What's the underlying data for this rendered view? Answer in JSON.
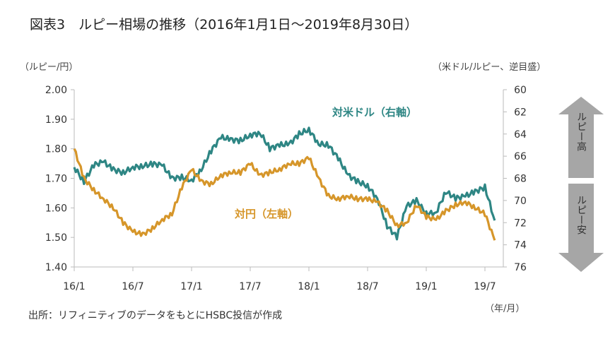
{
  "title": "図表3　ルピー相場の推移（2016年1月1日～2019年8月30日）",
  "left_unit": "（ルピー/円）",
  "right_unit": "（米ドル/ルピー、逆目盛）",
  "x_unit": "（年/月）",
  "source": "出所：リフィニティブのデータをもとにHSBC投信が作成",
  "arrow_up_label": "ルピー高",
  "arrow_down_label": "ルピー安",
  "colors": {
    "usd": "#2e8684",
    "jpy": "#d6962a",
    "axis": "#bbbbbb",
    "arrow": "#a6a6a6"
  },
  "chart_data": {
    "type": "line",
    "title": "ルピー相場の推移（2016年1月1日～2019年8月30日）",
    "x_ticks": [
      "16/1",
      "16/7",
      "17/1",
      "17/7",
      "18/1",
      "18/7",
      "19/1",
      "19/7"
    ],
    "y_left": {
      "label": "（ルピー/円）",
      "range": [
        1.4,
        2.0
      ],
      "ticks": [
        "1.40",
        "1.50",
        "1.60",
        "1.70",
        "1.80",
        "1.90",
        "2.00"
      ]
    },
    "y_right": {
      "label": "（米ドル/ルピー、逆目盛）",
      "range": [
        60,
        76
      ],
      "inverted": true,
      "ticks": [
        "60",
        "62",
        "64",
        "66",
        "68",
        "70",
        "72",
        "74",
        "76"
      ]
    },
    "months_from_2016_01": [
      0,
      1,
      2,
      3,
      4,
      5,
      6,
      7,
      8,
      9,
      10,
      11,
      12,
      13,
      14,
      15,
      16,
      17,
      18,
      19,
      20,
      21,
      22,
      23,
      24,
      25,
      26,
      27,
      28,
      29,
      30,
      31,
      32,
      33,
      34,
      35,
      36,
      37,
      38,
      39,
      40,
      41,
      42,
      43
    ],
    "series": [
      {
        "name": "対米ドル（右軸）",
        "axis": "right",
        "values": [
          67.0,
          68.3,
          66.8,
          66.5,
          67.2,
          67.5,
          67.0,
          66.9,
          66.7,
          66.8,
          68.0,
          67.9,
          68.2,
          67.2,
          65.5,
          64.3,
          64.5,
          64.6,
          64.1,
          63.9,
          65.3,
          65.0,
          64.9,
          64.0,
          63.6,
          64.9,
          65.0,
          66.2,
          67.7,
          68.3,
          68.7,
          69.8,
          72.3,
          73.3,
          70.5,
          70.0,
          71.2,
          71.1,
          69.2,
          69.8,
          69.6,
          69.2,
          68.8,
          71.8
        ]
      },
      {
        "name": "対円（左軸）",
        "axis": "left",
        "values": [
          1.8,
          1.7,
          1.66,
          1.63,
          1.6,
          1.55,
          1.52,
          1.51,
          1.53,
          1.56,
          1.58,
          1.67,
          1.73,
          1.69,
          1.68,
          1.71,
          1.72,
          1.72,
          1.75,
          1.71,
          1.72,
          1.73,
          1.75,
          1.75,
          1.77,
          1.7,
          1.64,
          1.63,
          1.64,
          1.63,
          1.63,
          1.62,
          1.59,
          1.54,
          1.55,
          1.61,
          1.57,
          1.56,
          1.59,
          1.61,
          1.62,
          1.6,
          1.58,
          1.49
        ]
      }
    ]
  }
}
